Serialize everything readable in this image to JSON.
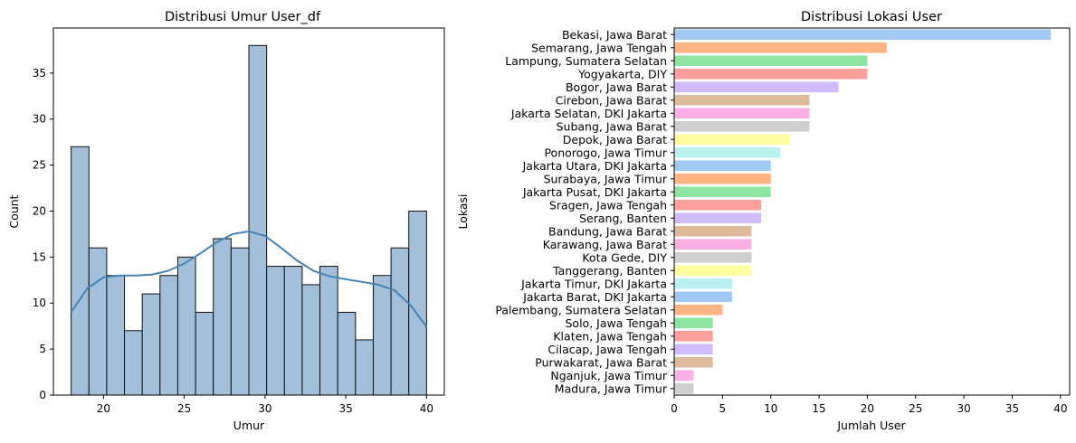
{
  "chart_data": [
    {
      "type": "bar",
      "subtype": "histogram",
      "title": "Distribusi Umur User_df",
      "xlabel": "Umur",
      "ylabel": "Count",
      "bin_start": 18,
      "bin_end": 40,
      "bin_width": 1.1,
      "values": [
        27,
        16,
        13,
        7,
        11,
        13,
        15,
        9,
        17,
        16,
        38,
        14,
        14,
        12,
        14,
        9,
        6,
        13,
        16,
        20
      ],
      "xlim": [
        16.9,
        41.1
      ],
      "ylim": [
        0,
        39.9
      ],
      "xticks": [
        20,
        25,
        30,
        35,
        40
      ],
      "yticks": [
        0,
        5,
        10,
        15,
        20,
        25,
        30,
        35
      ],
      "kde": {
        "x": [
          18,
          19,
          20,
          21,
          22,
          23,
          24,
          25,
          26,
          27,
          28,
          29,
          30,
          31,
          32,
          33,
          34,
          35,
          36,
          37,
          38,
          39,
          40
        ],
        "y": [
          9,
          11.6,
          12.8,
          13,
          13,
          13.1,
          13.5,
          14.3,
          15.4,
          16.6,
          17.5,
          17.8,
          17.3,
          16,
          14.6,
          13.5,
          12.9,
          12.6,
          12.3,
          12,
          11.4,
          9.8,
          7.4
        ]
      },
      "colors": {
        "bar": "#a3bfd9",
        "edge": "#111111",
        "kde": "#4682b4"
      },
      "grid": false,
      "legend": "none"
    },
    {
      "type": "bar",
      "orientation": "horizontal",
      "title": "Distribusi Lokasi User",
      "xlabel": "Jumlah User",
      "ylabel": "Lokasi",
      "categories": [
        "Bekasi, Jawa Barat",
        "Semarang, Jawa Tengah",
        "Lampung, Sumatera Selatan",
        "Yogyakarta, DIY",
        "Bogor, Jawa Barat",
        "Cirebon, Jawa Barat",
        "Jakarta Selatan, DKI Jakarta",
        "Subang, Jawa Barat",
        "Depok, Jawa Barat",
        "Ponorogo, Jawa Timur",
        "Jakarta Utara, DKI Jakarta",
        "Surabaya, Jawa Timur",
        "Jakarta Pusat, DKI Jakarta",
        "Sragen, Jawa Tengah",
        "Serang, Banten",
        "Bandung, Jawa Barat",
        "Karawang, Jawa Barat",
        "Kota Gede, DIY",
        "Tanggerang, Banten",
        "Jakarta Timur, DKI Jakarta",
        "Jakarta Barat, DKI Jakarta",
        "Palembang, Sumatera Selatan",
        "Solo, Jawa Tengah",
        "Klaten, Jawa Tengah",
        "Cilacap, Jawa Tengah",
        "Purwakarat, Jawa Barat",
        "Nganjuk, Jawa Timur",
        "Madura, Jawa Timur"
      ],
      "values": [
        39,
        22,
        20,
        20,
        17,
        14,
        14,
        14,
        12,
        11,
        10,
        10,
        10,
        9,
        9,
        8,
        8,
        8,
        8,
        6,
        6,
        5,
        4,
        4,
        4,
        4,
        2,
        2
      ],
      "xlim": [
        0,
        40.95
      ],
      "xticks": [
        0,
        5,
        10,
        15,
        20,
        25,
        30,
        35,
        40
      ],
      "palette": [
        "#a1c9f4",
        "#ffb482",
        "#8de5a1",
        "#ff9f9b",
        "#d0bbff",
        "#debb9b",
        "#fab0e4",
        "#cfcfcf",
        "#fffea3",
        "#b9f2f0"
      ],
      "grid": false,
      "legend": "none"
    }
  ]
}
